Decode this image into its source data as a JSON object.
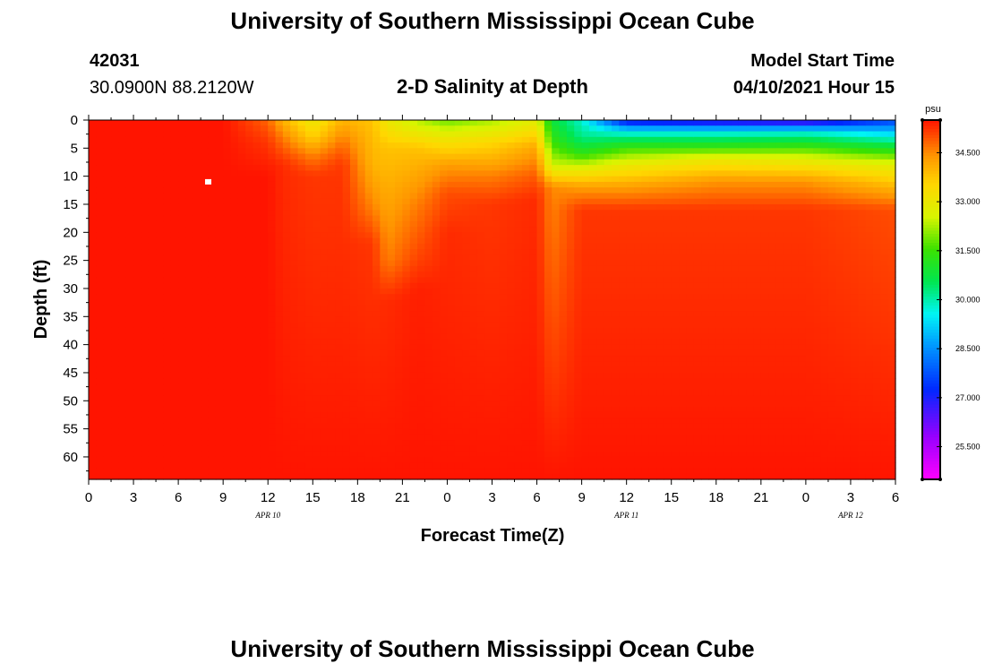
{
  "header": {
    "title": "University of Southern Mississippi Ocean Cube",
    "station_id": "42031",
    "location": "30.0900N  88.2120W",
    "plot_title": "2-D Salinity at Depth",
    "model_start_label": "Model Start Time",
    "model_start_value": "04/10/2021 Hour 15"
  },
  "footer": {
    "title": "University of Southern Mississippi Ocean Cube"
  },
  "chart_data": {
    "type": "heatmap",
    "title": "2-D Salinity at Depth",
    "xlabel": "Forecast Time(Z)",
    "ylabel": "Depth (ft)",
    "x_hours_range": [
      0,
      54
    ],
    "x_tick_step_hours": 3,
    "x_tick_labels": [
      "0",
      "3",
      "6",
      "9",
      "12",
      "15",
      "18",
      "21",
      "0",
      "3",
      "6",
      "9",
      "12",
      "15",
      "18",
      "21",
      "0",
      "3",
      "6"
    ],
    "date_labels": [
      {
        "text": "APR 10",
        "hour": 12
      },
      {
        "text": "APR 11",
        "hour": 36
      },
      {
        "text": "APR 12",
        "hour": 51
      }
    ],
    "ylim": [
      0,
      64
    ],
    "y_ticks": [
      0,
      5,
      10,
      15,
      20,
      25,
      30,
      35,
      40,
      45,
      50,
      55,
      60
    ],
    "y_tick_labels": [
      "0",
      "5",
      "10",
      "15",
      "20",
      "25",
      "30",
      "35",
      "40",
      "45",
      "50",
      "55",
      "60"
    ],
    "colorbar": {
      "units": "psu",
      "min": 24.5,
      "max": 35.5,
      "tick_values": [
        34.5,
        33.0,
        31.5,
        30.0,
        28.5,
        27.0,
        25.5
      ],
      "tick_labels": [
        "34.500",
        "33.000",
        "31.500",
        "30.000",
        "28.500",
        "27.000",
        "25.500"
      ]
    },
    "profiles": [
      {
        "hour": 0,
        "depth": [
          0,
          64
        ],
        "salinity": [
          35.5,
          35.5
        ]
      },
      {
        "hour": 9,
        "depth": [
          0,
          64
        ],
        "salinity": [
          35.5,
          35.5
        ]
      },
      {
        "hour": 12,
        "depth": [
          0,
          4,
          10,
          64
        ],
        "salinity": [
          34.8,
          35.2,
          35.5,
          35.5
        ]
      },
      {
        "hour": 13,
        "depth": [
          0,
          3,
          8,
          64
        ],
        "salinity": [
          34.0,
          34.6,
          35.3,
          35.5
        ]
      },
      {
        "hour": 15,
        "depth": [
          0,
          3,
          6,
          10,
          64
        ],
        "salinity": [
          33.0,
          33.6,
          34.5,
          35.2,
          35.5
        ]
      },
      {
        "hour": 17,
        "depth": [
          0,
          4,
          8,
          64
        ],
        "salinity": [
          34.0,
          34.7,
          35.2,
          35.5
        ]
      },
      {
        "hour": 19,
        "depth": [
          0,
          8,
          16,
          22,
          64
        ],
        "salinity": [
          33.8,
          34.0,
          34.6,
          35.2,
          35.5
        ]
      },
      {
        "hour": 20,
        "depth": [
          0,
          5,
          15,
          25,
          32,
          64
        ],
        "salinity": [
          33.0,
          33.8,
          34.2,
          34.6,
          35.3,
          35.5
        ]
      },
      {
        "hour": 22,
        "depth": [
          0,
          5,
          15,
          25,
          30,
          64
        ],
        "salinity": [
          32.3,
          33.8,
          34.6,
          35.1,
          35.4,
          35.5
        ]
      },
      {
        "hour": 24,
        "depth": [
          0,
          3,
          8,
          13,
          20,
          64
        ],
        "salinity": [
          31.8,
          33.0,
          34.3,
          35.0,
          35.3,
          35.5
        ]
      },
      {
        "hour": 27,
        "depth": [
          0,
          4,
          10,
          15,
          64
        ],
        "salinity": [
          32.2,
          33.5,
          34.6,
          35.2,
          35.5
        ]
      },
      {
        "hour": 30,
        "depth": [
          0,
          5,
          10,
          14,
          64
        ],
        "salinity": [
          32.8,
          34.2,
          34.9,
          35.3,
          35.5
        ]
      },
      {
        "hour": 31,
        "depth": [
          0,
          4,
          8,
          12,
          64
        ],
        "salinity": [
          30.8,
          31.5,
          32.5,
          34.5,
          35.5
        ]
      },
      {
        "hour": 33,
        "depth": [
          0,
          3,
          6,
          9,
          12,
          16,
          64
        ],
        "salinity": [
          29.8,
          30.2,
          31.3,
          33.0,
          34.3,
          35.2,
          35.5
        ]
      },
      {
        "hour": 36,
        "depth": [
          0,
          2,
          5,
          8,
          12,
          16,
          64
        ],
        "salinity": [
          26.6,
          29.5,
          31.5,
          33.0,
          34.3,
          35.2,
          35.5
        ]
      },
      {
        "hour": 42,
        "depth": [
          0,
          2,
          5,
          7,
          11,
          16,
          64
        ],
        "salinity": [
          26.3,
          29.5,
          31.5,
          33.0,
          34.4,
          35.2,
          35.5
        ]
      },
      {
        "hour": 48,
        "depth": [
          0,
          2,
          5,
          7,
          11,
          16,
          64
        ],
        "salinity": [
          26.0,
          29.6,
          31.6,
          32.8,
          34.4,
          35.2,
          35.5
        ]
      },
      {
        "hour": 54,
        "depth": [
          0,
          2,
          5,
          8,
          12,
          16,
          64
        ],
        "salinity": [
          27.5,
          29.0,
          31.0,
          32.8,
          34.0,
          35.0,
          35.5
        ]
      }
    ],
    "marker": {
      "hour": 8,
      "depth": 11
    }
  }
}
